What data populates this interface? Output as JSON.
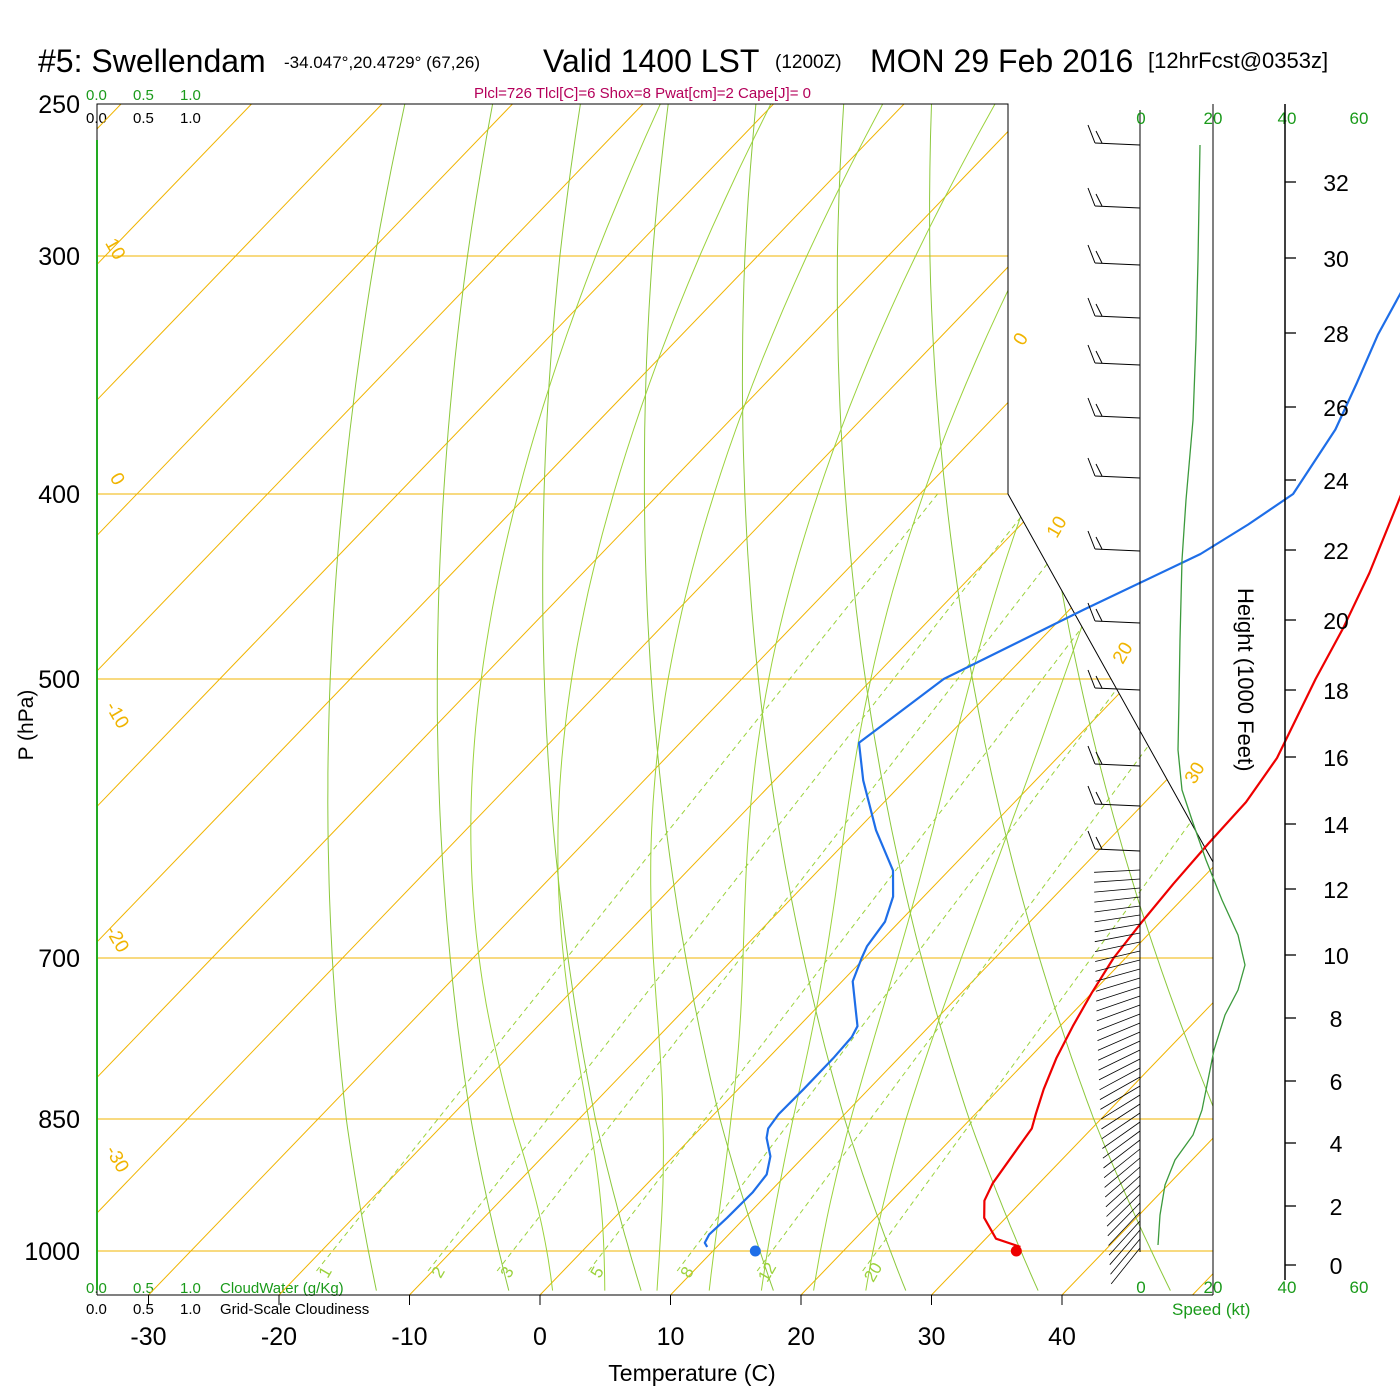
{
  "header": {
    "station": "#5: Swellendam",
    "coords": "-34.047°,20.4729° (67,26)",
    "valid": "Valid 1400 LST",
    "zulu": "(1200Z)",
    "date": "MON 29 Feb 2016",
    "fcst": "[12hrFcst@0353z]",
    "params": "Plcl=726 Tlcl[C]=6 Shox=8 Pwat[cm]=2 Cape[J]= 0"
  },
  "cloud_scale": {
    "ticks": [
      "0.0",
      "0.5",
      "1.0"
    ],
    "cloudwater_label": "CloudWater (g/Kg)",
    "cloudiness_label": "Grid-Scale Cloudiness"
  },
  "colors": {
    "temperature": "#ee0000",
    "dewpoint": "#1e6ee8",
    "isotherm": "#f0b400",
    "dry_adiabat": "#8cc83c",
    "mixing_ratio": "#9bd23c",
    "wind_speed": "#3c9a3c",
    "params_text": "#b4005a",
    "green_text": "#1a9a1a"
  },
  "chart_data": {
    "type": "skew-t",
    "xlabel": "Temperature (C)",
    "ylabel": "P (hPa)",
    "y2label": "Height (1000 Feet)",
    "xlim": [
      -33,
      40
    ],
    "ylim": [
      1000,
      250
    ],
    "pressure_ticks": [
      250,
      300,
      400,
      500,
      700,
      850,
      1000
    ],
    "temperature_ticks": [
      -30,
      -20,
      -10,
      0,
      10,
      20,
      30,
      40
    ],
    "height_ticks_kft": [
      0,
      2,
      4,
      6,
      8,
      10,
      12,
      14,
      16,
      18,
      20,
      22,
      24,
      26,
      28,
      30,
      32
    ],
    "isotherm_labels": [
      "10",
      "0",
      "-10",
      "-20",
      "-30",
      "0",
      "10",
      "20",
      "30"
    ],
    "mixing_ratio_labels": [
      "1",
      "2",
      "3",
      "5",
      "8",
      "12",
      "20"
    ],
    "speed_axis": {
      "label": "Speed (kt)",
      "ticks": [
        0,
        20,
        40,
        60
      ]
    },
    "series": [
      {
        "name": "temperature",
        "points": [
          [
            995,
            36.5
          ],
          [
            985,
            34
          ],
          [
            960,
            31.5
          ],
          [
            940,
            30.2
          ],
          [
            920,
            29.5
          ],
          [
            880,
            28.7
          ],
          [
            860,
            28.3
          ],
          [
            845,
            27.5
          ],
          [
            820,
            26.2
          ],
          [
            790,
            24.8
          ],
          [
            760,
            23.6
          ],
          [
            730,
            22.5
          ],
          [
            700,
            21.5
          ],
          [
            670,
            20.9
          ],
          [
            640,
            20.4
          ],
          [
            610,
            20.0
          ],
          [
            580,
            19.7
          ],
          [
            550,
            18.7
          ],
          [
            500,
            15.6
          ],
          [
            470,
            13.8
          ],
          [
            440,
            11.6
          ],
          [
            400,
            8.0
          ],
          [
            350,
            4.2
          ],
          [
            300,
            -2.5
          ],
          [
            260,
            -9.0
          ]
        ]
      },
      {
        "name": "dewpoint",
        "points": [
          [
            995,
            12.5
          ],
          [
            990,
            12.0
          ],
          [
            980,
            11.7
          ],
          [
            960,
            11.8
          ],
          [
            930,
            11.8
          ],
          [
            910,
            11.5
          ],
          [
            890,
            10.4
          ],
          [
            870,
            8.7
          ],
          [
            860,
            8.1
          ],
          [
            845,
            7.8
          ],
          [
            820,
            7.8
          ],
          [
            790,
            7.7
          ],
          [
            770,
            7.5
          ],
          [
            760,
            7.1
          ],
          [
            745,
            5.7
          ],
          [
            720,
            3.3
          ],
          [
            700,
            2.2
          ],
          [
            690,
            1.7
          ],
          [
            670,
            1.2
          ],
          [
            650,
            -0.1
          ],
          [
            630,
            -2.1
          ],
          [
            600,
            -6.5
          ],
          [
            565,
            -11.3
          ],
          [
            540,
            -14.5
          ],
          [
            500,
            -12.9
          ],
          [
            460,
            -7.5
          ],
          [
            430,
            -2.8
          ],
          [
            415,
            -1.4
          ],
          [
            400,
            -0.3
          ],
          [
            370,
            -2.0
          ],
          [
            350,
            -3.9
          ],
          [
            330,
            -6.0
          ],
          [
            310,
            -7.8
          ],
          [
            285,
            -9.5
          ],
          [
            262,
            -11.2
          ]
        ]
      }
    ],
    "surface_points": {
      "temperature": 36.5,
      "dewpoint": 16.5,
      "pressure": 1000
    }
  }
}
